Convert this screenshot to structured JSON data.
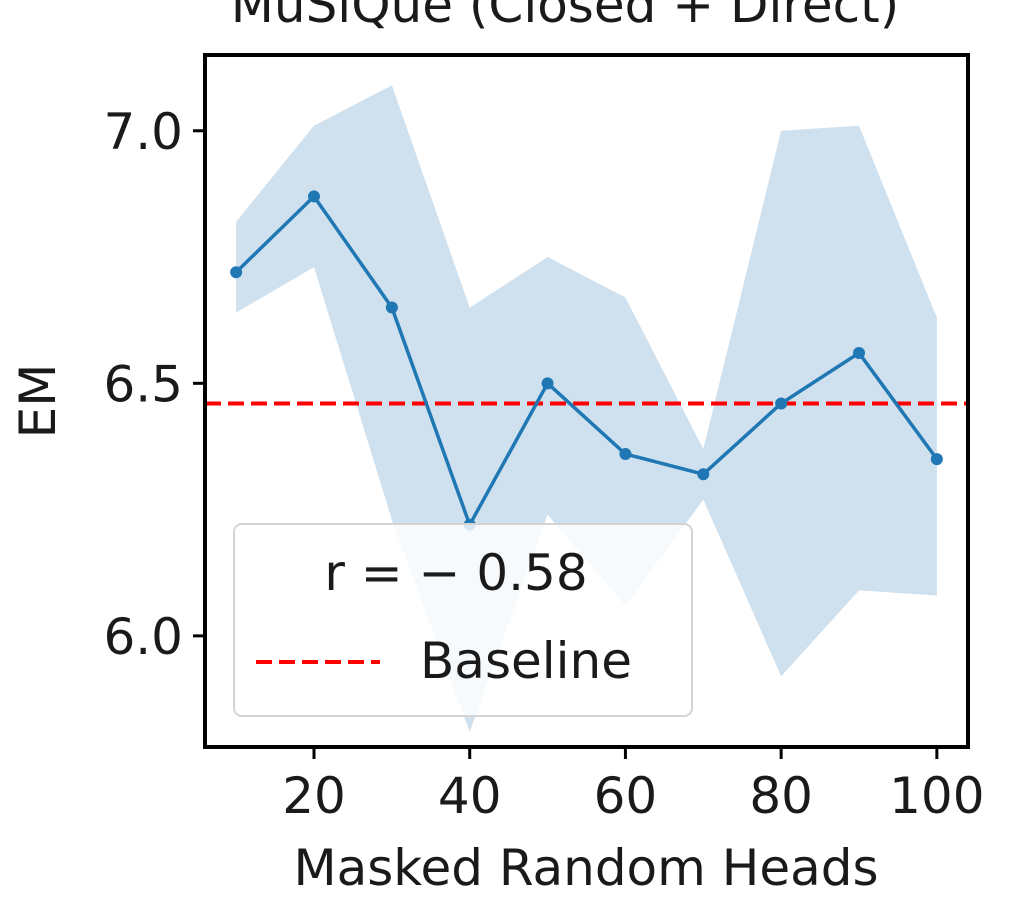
{
  "chart_data": {
    "type": "line",
    "title": "MuSiQue (Closed + Direct)",
    "xlabel": "Masked Random Heads",
    "ylabel": "EM",
    "xlim": [
      6,
      104
    ],
    "ylim": [
      5.78,
      7.15
    ],
    "xticks": [
      20,
      40,
      60,
      80,
      100
    ],
    "xtick_labels": [
      "20",
      "40",
      "60",
      "80",
      "100"
    ],
    "yticks": [
      6.0,
      6.5,
      7.0
    ],
    "ytick_labels": [
      "6.0",
      "6.5",
      "7.0"
    ],
    "grid": false,
    "series": [
      {
        "x": [
          10,
          20,
          30,
          40,
          50,
          60,
          70,
          80,
          90,
          100
        ],
        "y": [
          6.72,
          6.87,
          6.65,
          6.22,
          6.5,
          6.36,
          6.32,
          6.46,
          6.56,
          6.35
        ],
        "band_upper": [
          6.82,
          7.01,
          7.09,
          6.65,
          6.75,
          6.67,
          6.37,
          7.0,
          7.01,
          6.63
        ],
        "band_lower": [
          6.64,
          6.73,
          6.23,
          5.81,
          6.24,
          6.06,
          6.27,
          5.92,
          6.09,
          6.08
        ],
        "color": "#1f77b4",
        "band_color": "#cfe0ee"
      }
    ],
    "baseline": {
      "name": "Baseline",
      "y": 6.46,
      "color": "#ff0000"
    },
    "legend": {
      "placement": "lower-left",
      "annotation": "r = − 0.58",
      "entries": [
        "Baseline"
      ]
    }
  }
}
